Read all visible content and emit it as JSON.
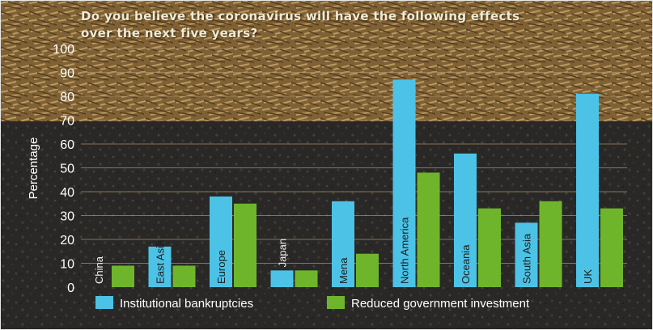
{
  "colors": {
    "series1": "#4cc3e6",
    "series2": "#6fb52c",
    "text": "#ffffff",
    "grid": "#a78f66"
  },
  "chart_data": {
    "type": "bar",
    "title": "Do you believe the coronavirus will have the following effects over the next five years?",
    "ylabel": "Percentage",
    "xlabel": "",
    "ylim": [
      0,
      100
    ],
    "yticks": [
      0,
      10,
      20,
      30,
      40,
      50,
      60,
      70,
      80,
      90,
      100
    ],
    "grid": true,
    "legend_position": "bottom",
    "categories": [
      "China",
      "East Asia",
      "Europe",
      "Japan",
      "Mena",
      "North America",
      "Oceania",
      "South Asia",
      "UK"
    ],
    "series": [
      {
        "name": "Institutional bankruptcies",
        "values": [
          0,
          17,
          38,
          7,
          36,
          87,
          56,
          27,
          81
        ]
      },
      {
        "name": "Reduced government investment",
        "values": [
          9,
          9,
          35,
          7,
          14,
          48,
          33,
          36,
          33
        ]
      }
    ]
  }
}
